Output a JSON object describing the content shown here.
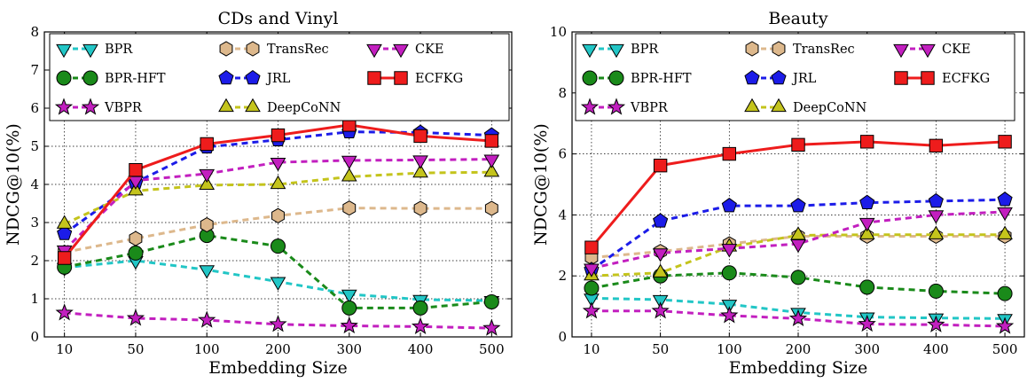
{
  "chart_data": [
    {
      "type": "line",
      "title": "CDs and Vinyl",
      "xlabel": "Embedding Size",
      "ylabel": "NDCG@10(%)",
      "categories": [
        "10",
        "50",
        "100",
        "200",
        "300",
        "400",
        "500"
      ],
      "ylim": [
        0,
        8
      ],
      "yticks": [
        "0",
        "1",
        "2",
        "3",
        "4",
        "5",
        "6",
        "7",
        "8"
      ],
      "grid": true,
      "legend_position": "top",
      "series": [
        {
          "name": "BPR",
          "values": [
            1.82,
            2.0,
            1.76,
            1.45,
            1.12,
            0.98,
            0.95
          ]
        },
        {
          "name": "BPR-HFT",
          "values": [
            1.83,
            2.2,
            2.66,
            2.38,
            0.76,
            0.76,
            0.92
          ]
        },
        {
          "name": "VBPR",
          "values": [
            0.63,
            0.49,
            0.44,
            0.33,
            0.29,
            0.27,
            0.23
          ]
        },
        {
          "name": "TransRec",
          "values": [
            2.22,
            2.58,
            2.94,
            3.18,
            3.38,
            3.37,
            3.37
          ]
        },
        {
          "name": "JRL",
          "values": [
            2.71,
            4.05,
            4.98,
            5.17,
            5.38,
            5.36,
            5.29
          ]
        },
        {
          "name": "DeepCoNN",
          "values": [
            2.96,
            3.83,
            3.98,
            4.0,
            4.2,
            4.3,
            4.32
          ]
        },
        {
          "name": "CKE",
          "values": [
            2.28,
            4.1,
            4.28,
            4.58,
            4.63,
            4.64,
            4.66
          ]
        },
        {
          "name": "ECFKG",
          "values": [
            2.07,
            4.38,
            5.06,
            5.29,
            5.56,
            5.27,
            5.14
          ]
        }
      ]
    },
    {
      "type": "line",
      "title": "Beauty",
      "xlabel": "Embedding Size",
      "ylabel": "NDCG@10(%)",
      "categories": [
        "10",
        "50",
        "100",
        "200",
        "300",
        "400",
        "500"
      ],
      "ylim": [
        0,
        10
      ],
      "yticks": [
        "0",
        "2",
        "4",
        "6",
        "8",
        "10"
      ],
      "grid": true,
      "legend_position": "top",
      "series": [
        {
          "name": "BPR",
          "values": [
            1.27,
            1.22,
            1.07,
            0.8,
            0.65,
            0.62,
            0.6
          ]
        },
        {
          "name": "BPR-HFT",
          "values": [
            1.6,
            2.0,
            2.1,
            1.95,
            1.63,
            1.5,
            1.42
          ]
        },
        {
          "name": "VBPR",
          "values": [
            0.85,
            0.85,
            0.7,
            0.6,
            0.42,
            0.4,
            0.35
          ]
        },
        {
          "name": "TransRec",
          "values": [
            2.6,
            2.8,
            3.05,
            3.3,
            3.3,
            3.3,
            3.3
          ]
        },
        {
          "name": "JRL",
          "values": [
            2.2,
            3.8,
            4.3,
            4.3,
            4.4,
            4.45,
            4.5
          ]
        },
        {
          "name": "DeepCoNN",
          "values": [
            2.0,
            2.1,
            2.95,
            3.33,
            3.35,
            3.35,
            3.35
          ]
        },
        {
          "name": "CKE",
          "values": [
            2.25,
            2.75,
            2.9,
            3.05,
            3.75,
            4.0,
            4.1
          ]
        },
        {
          "name": "ECFKG",
          "values": [
            2.93,
            5.62,
            6.0,
            6.3,
            6.4,
            6.27,
            6.4
          ]
        }
      ]
    }
  ],
  "series_styles": {
    "BPR": {
      "color": "#22c6c6",
      "marker": "triangle-down"
    },
    "BPR-HFT": {
      "color": "#1a8a1a",
      "marker": "circle"
    },
    "VBPR": {
      "color": "#c21fbf",
      "marker": "star"
    },
    "TransRec": {
      "color": "#ddb88c",
      "marker": "hexagon"
    },
    "JRL": {
      "color": "#1c1ce8",
      "marker": "pentagon"
    },
    "DeepCoNN": {
      "color": "#c4c41c",
      "marker": "triangle-up"
    },
    "CKE": {
      "color": "#c21fbf",
      "marker": "triangle-down"
    },
    "ECFKG": {
      "color": "#ee1c1c",
      "marker": "square"
    }
  }
}
